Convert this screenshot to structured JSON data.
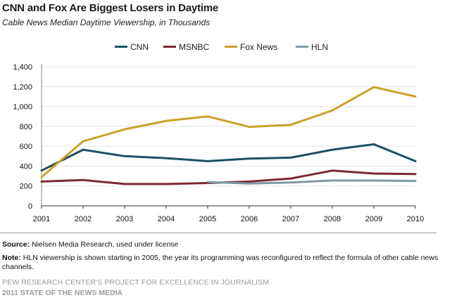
{
  "title": "CNN and Fox Are Biggest Losers in Daytime",
  "subtitle": "Cable News Median Daytime Viewership, in Thousands",
  "source_label": "Source:",
  "source_text": "Nielsen Media Research, used under license",
  "note_label": "Note:",
  "note_text": "HLN viewership is shown starting in 2005, the year its programming was reconfigured to reflect the formula of other cable news channels.",
  "credit_line1": "PEW RESEARCH CENTER'S PROJECT FOR EXCELLENCE IN JOURNALISM",
  "credit_line2": "2011 STATE OF THE NEWS MEDIA",
  "chart_data": {
    "type": "line",
    "x": [
      "2001",
      "2002",
      "2003",
      "2004",
      "2005",
      "2006",
      "2007",
      "2008",
      "2009",
      "2010"
    ],
    "ylim": [
      0,
      1400
    ],
    "yticks": [
      "0",
      "200",
      "400",
      "600",
      "800",
      "1,000",
      "1,200",
      "1,400"
    ],
    "ytick_values": [
      0,
      200,
      400,
      600,
      800,
      1000,
      1200,
      1400
    ],
    "grid": true,
    "legend_position": "top-center",
    "series": [
      {
        "name": "CNN",
        "color": "#1d4e63",
        "values": [
          355,
          565,
          500,
          480,
          450,
          475,
          485,
          565,
          620,
          450
        ]
      },
      {
        "name": "MSNBC",
        "color": "#7a2a35",
        "values": [
          245,
          260,
          220,
          220,
          230,
          245,
          275,
          355,
          325,
          320
        ]
      },
      {
        "name": "Fox News",
        "color": "#c9a229",
        "values": [
          290,
          650,
          770,
          855,
          900,
          795,
          815,
          960,
          1195,
          1100
        ]
      },
      {
        "name": "HLN",
        "color": "#7f98a6",
        "values": [
          null,
          null,
          null,
          null,
          240,
          225,
          235,
          255,
          255,
          250
        ]
      }
    ]
  }
}
